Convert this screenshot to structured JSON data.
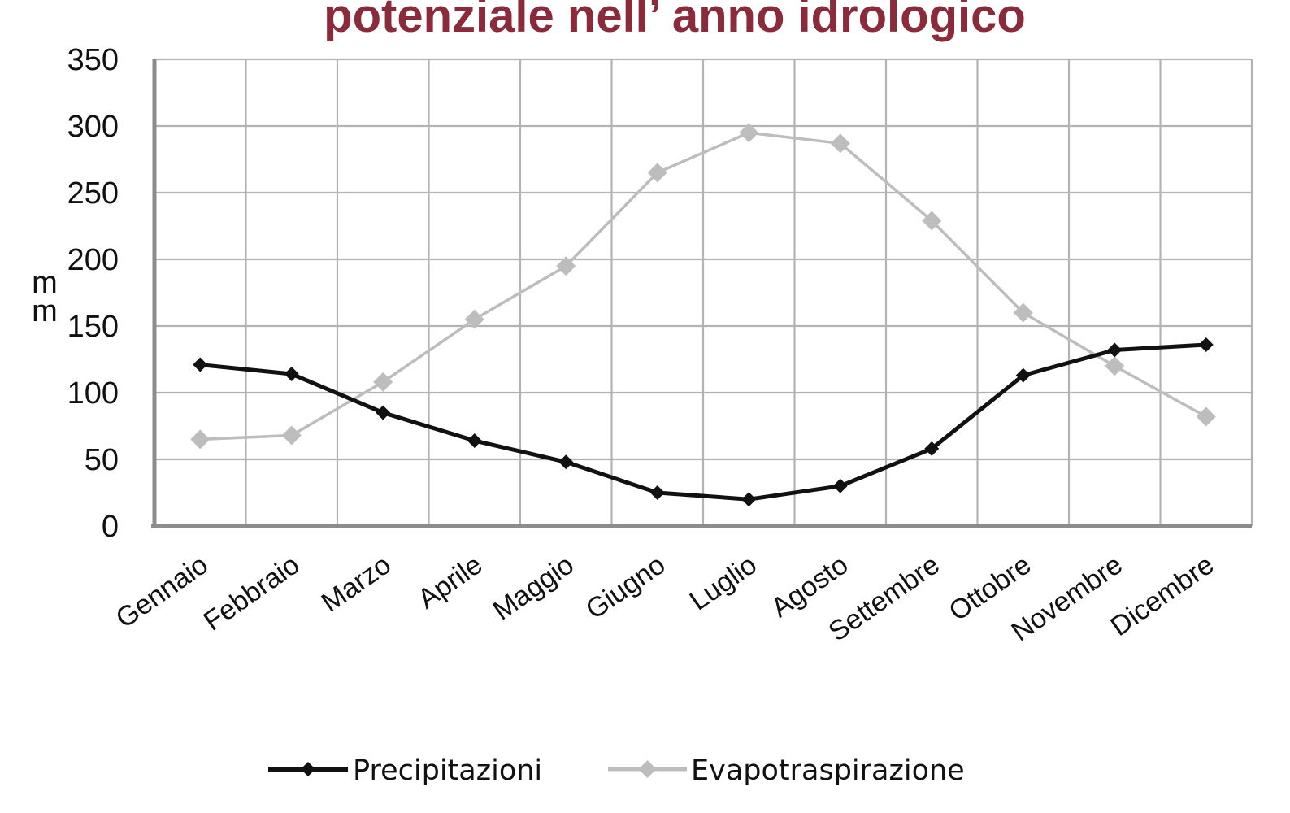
{
  "chart_data": {
    "type": "line",
    "title": "potenziale nell’ anno idrologico",
    "xlabel": "",
    "ylabel": "mm",
    "ylim": [
      0,
      350
    ],
    "yticks": [
      0,
      50,
      100,
      150,
      200,
      250,
      300,
      350
    ],
    "grid": true,
    "legend_position": "bottom",
    "categories": [
      "Gennaio",
      "Febbraio",
      "Marzo",
      "Aprile",
      "Maggio",
      "Giugno",
      "Luglio",
      "Agosto",
      "Settembre",
      "Ottobre",
      "Novembre",
      "Dicembre"
    ],
    "series": [
      {
        "name": "Precipitazioni",
        "color": "#111111",
        "marker": "diamond",
        "values": [
          121,
          114,
          85,
          64,
          48,
          25,
          20,
          30,
          58,
          113,
          132,
          136
        ]
      },
      {
        "name": "Evapotraspirazione",
        "color": "#bdbdbd",
        "marker": "diamond",
        "values": [
          65,
          68,
          108,
          155,
          195,
          265,
          295,
          287,
          229,
          160,
          120,
          82
        ]
      }
    ]
  }
}
